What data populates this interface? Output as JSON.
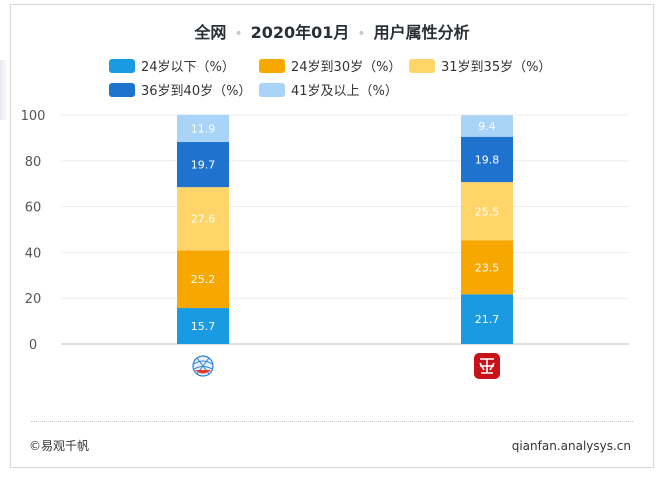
{
  "header": {
    "scope": "全网",
    "period": "2020年01月",
    "topic": "用户属性分析",
    "separator": "•"
  },
  "footer": {
    "copyright": "©易观千帆",
    "site": "qianfan.analysys.cn"
  },
  "colors": {
    "under24": "#1a9ae0",
    "age24to30": "#f7a800",
    "age31to35": "#ffd56a",
    "age36to40": "#1f73cf",
    "over41": "#a9d4f7"
  },
  "icons": [
    "mesh-globe-app-icon",
    "red-seal-app-icon"
  ],
  "chart_data": {
    "type": "bar",
    "stacked": true,
    "categories": [
      "App 1",
      "App 2"
    ],
    "category_display": "icons",
    "series": [
      {
        "name": "24岁以下（%）",
        "color": "#1a9ae0",
        "values": [
          15.7,
          21.7
        ]
      },
      {
        "name": "24岁到30岁（%）",
        "color": "#f7a800",
        "values": [
          25.2,
          23.5
        ]
      },
      {
        "name": "31岁到35岁（%）",
        "color": "#ffd56a",
        "values": [
          27.6,
          25.5
        ]
      },
      {
        "name": "36岁到40岁（%）",
        "color": "#1f73cf",
        "values": [
          19.7,
          19.8
        ]
      },
      {
        "name": "41岁及以上（%）",
        "color": "#a9d4f7",
        "values": [
          11.9,
          9.4
        ]
      }
    ],
    "ylim": [
      0,
      100
    ],
    "yticks": [
      0,
      20,
      40,
      60,
      80,
      100
    ],
    "grid": true,
    "legend_position": "top"
  }
}
